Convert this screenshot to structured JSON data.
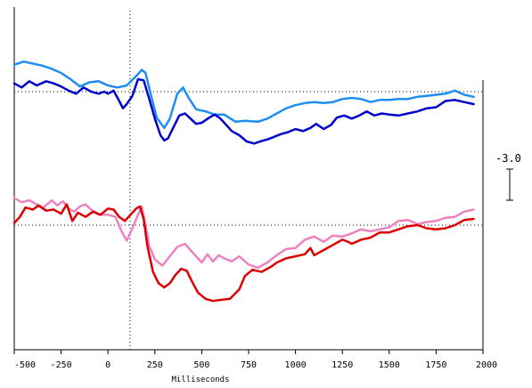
{
  "chart_data": {
    "type": "line",
    "title": "",
    "xlabel": "Milliseconds",
    "ylabel": "",
    "xlim": [
      -500,
      2000
    ],
    "x_ticks": [
      -500,
      -250,
      0,
      250,
      500,
      750,
      1000,
      1250,
      1500,
      1750,
      2000
    ],
    "x_tick_labels": [
      "-500",
      "-250",
      "0",
      "250",
      "500",
      "750",
      "1000",
      "1250",
      "1500",
      "1750",
      "2000"
    ],
    "scale_bar_label": "-3.0",
    "scale_bar_microvolts": 3.0,
    "grid": false,
    "legend": "none",
    "panels": [
      {
        "baseline": 0,
        "ylim": [
          -7.5,
          3.5
        ],
        "series": [
          {
            "color": "#1e8ef0",
            "points": [
              [
                -500,
                2.6
              ],
              [
                -450,
                2.9
              ],
              [
                -400,
                2.7
              ],
              [
                -350,
                2.5
              ],
              [
                -300,
                2.2
              ],
              [
                -250,
                1.8
              ],
              [
                -200,
                1.2
              ],
              [
                -150,
                0.5
              ],
              [
                -100,
                0.9
              ],
              [
                -50,
                1.0
              ],
              [
                0,
                0.6
              ],
              [
                50,
                0.4
              ],
              [
                100,
                0.6
              ],
              [
                150,
                1.5
              ],
              [
                180,
                2.1
              ],
              [
                200,
                1.8
              ],
              [
                230,
                -0.4
              ],
              [
                260,
                -2.5
              ],
              [
                300,
                -3.5
              ],
              [
                330,
                -2.6
              ],
              [
                370,
                -0.2
              ],
              [
                400,
                0.4
              ],
              [
                430,
                -0.6
              ],
              [
                470,
                -1.7
              ],
              [
                520,
                -1.9
              ],
              [
                570,
                -2.2
              ],
              [
                620,
                -2.2
              ],
              [
                680,
                -2.9
              ],
              [
                730,
                -2.8
              ],
              [
                800,
                -2.9
              ],
              [
                850,
                -2.6
              ],
              [
                900,
                -2.1
              ],
              [
                950,
                -1.6
              ],
              [
                1000,
                -1.3
              ],
              [
                1050,
                -1.1
              ],
              [
                1100,
                -1.0
              ],
              [
                1150,
                -1.1
              ],
              [
                1200,
                -1.0
              ],
              [
                1250,
                -0.7
              ],
              [
                1300,
                -0.6
              ],
              [
                1350,
                -0.7
              ],
              [
                1400,
                -1.0
              ],
              [
                1450,
                -0.8
              ],
              [
                1500,
                -0.8
              ],
              [
                1550,
                -0.7
              ],
              [
                1600,
                -0.7
              ],
              [
                1650,
                -0.5
              ],
              [
                1700,
                -0.4
              ],
              [
                1750,
                -0.3
              ],
              [
                1800,
                -0.2
              ],
              [
                1850,
                0.1
              ],
              [
                1900,
                -0.3
              ],
              [
                1950,
                -0.5
              ]
            ]
          },
          {
            "color": "#0000cc",
            "points": [
              [
                -500,
                0.8
              ],
              [
                -460,
                0.4
              ],
              [
                -420,
                1.0
              ],
              [
                -380,
                0.6
              ],
              [
                -330,
                1.0
              ],
              [
                -290,
                0.8
              ],
              [
                -250,
                0.5
              ],
              [
                -210,
                0.1
              ],
              [
                -170,
                -0.2
              ],
              [
                -130,
                0.4
              ],
              [
                -90,
                0.0
              ],
              [
                -50,
                -0.2
              ],
              [
                -20,
                0.0
              ],
              [
                0,
                -0.2
              ],
              [
                30,
                0.1
              ],
              [
                60,
                -0.9
              ],
              [
                80,
                -1.6
              ],
              [
                100,
                -1.2
              ],
              [
                130,
                -0.4
              ],
              [
                160,
                1.2
              ],
              [
                190,
                1.1
              ],
              [
                220,
                -0.7
              ],
              [
                250,
                -2.6
              ],
              [
                280,
                -4.2
              ],
              [
                300,
                -4.7
              ],
              [
                320,
                -4.5
              ],
              [
                350,
                -3.4
              ],
              [
                380,
                -2.3
              ],
              [
                410,
                -2.1
              ],
              [
                440,
                -2.6
              ],
              [
                470,
                -3.1
              ],
              [
                500,
                -3.0
              ],
              [
                540,
                -2.5
              ],
              [
                570,
                -2.2
              ],
              [
                600,
                -2.6
              ],
              [
                630,
                -3.2
              ],
              [
                660,
                -3.8
              ],
              [
                700,
                -4.2
              ],
              [
                740,
                -4.8
              ],
              [
                780,
                -5.0
              ],
              [
                810,
                -4.8
              ],
              [
                850,
                -4.6
              ],
              [
                880,
                -4.4
              ],
              [
                920,
                -4.1
              ],
              [
                960,
                -3.9
              ],
              [
                1000,
                -3.6
              ],
              [
                1040,
                -3.8
              ],
              [
                1080,
                -3.5
              ],
              [
                1110,
                -3.1
              ],
              [
                1150,
                -3.6
              ],
              [
                1190,
                -3.2
              ],
              [
                1220,
                -2.5
              ],
              [
                1260,
                -2.3
              ],
              [
                1300,
                -2.6
              ],
              [
                1340,
                -2.3
              ],
              [
                1380,
                -1.9
              ],
              [
                1420,
                -2.3
              ],
              [
                1460,
                -2.1
              ],
              [
                1500,
                -2.2
              ],
              [
                1550,
                -2.3
              ],
              [
                1600,
                -2.1
              ],
              [
                1650,
                -1.9
              ],
              [
                1700,
                -1.6
              ],
              [
                1750,
                -1.5
              ],
              [
                1800,
                -0.9
              ],
              [
                1850,
                -0.8
              ],
              [
                1900,
                -1.0
              ],
              [
                1950,
                -1.2
              ]
            ]
          }
        ]
      },
      {
        "baseline": 0,
        "ylim": [
          -7.5,
          3.5
        ],
        "series": [
          {
            "color": "#ee82c0",
            "points": [
              [
                -500,
                2.6
              ],
              [
                -460,
                2.2
              ],
              [
                -420,
                2.4
              ],
              [
                -380,
                2.0
              ],
              [
                -350,
                1.6
              ],
              [
                -300,
                2.4
              ],
              [
                -270,
                1.9
              ],
              [
                -240,
                2.3
              ],
              [
                -210,
                1.6
              ],
              [
                -180,
                1.3
              ],
              [
                -150,
                1.8
              ],
              [
                -120,
                2.0
              ],
              [
                -90,
                1.5
              ],
              [
                -50,
                1.0
              ],
              [
                0,
                1.0
              ],
              [
                40,
                0.8
              ],
              [
                70,
                -0.5
              ],
              [
                100,
                -1.5
              ],
              [
                130,
                -0.3
              ],
              [
                160,
                1.0
              ],
              [
                180,
                1.8
              ],
              [
                200,
                0.0
              ],
              [
                220,
                -2.0
              ],
              [
                250,
                -3.3
              ],
              [
                290,
                -3.9
              ],
              [
                330,
                -3.0
              ],
              [
                370,
                -2.1
              ],
              [
                410,
                -1.8
              ],
              [
                440,
                -2.4
              ],
              [
                470,
                -3.0
              ],
              [
                500,
                -3.6
              ],
              [
                530,
                -2.8
              ],
              [
                560,
                -3.5
              ],
              [
                590,
                -2.9
              ],
              [
                620,
                -3.2
              ],
              [
                660,
                -3.5
              ],
              [
                700,
                -3.0
              ],
              [
                750,
                -3.8
              ],
              [
                800,
                -4.1
              ],
              [
                850,
                -3.6
              ],
              [
                900,
                -2.9
              ],
              [
                950,
                -2.3
              ],
              [
                1000,
                -2.2
              ],
              [
                1050,
                -1.4
              ],
              [
                1100,
                -1.1
              ],
              [
                1150,
                -1.6
              ],
              [
                1200,
                -1.0
              ],
              [
                1250,
                -1.1
              ],
              [
                1300,
                -0.8
              ],
              [
                1350,
                -0.4
              ],
              [
                1400,
                -0.6
              ],
              [
                1450,
                -0.4
              ],
              [
                1500,
                -0.2
              ],
              [
                1550,
                0.4
              ],
              [
                1600,
                0.5
              ],
              [
                1650,
                0.1
              ],
              [
                1700,
                0.3
              ],
              [
                1750,
                0.4
              ],
              [
                1800,
                0.7
              ],
              [
                1850,
                0.8
              ],
              [
                1900,
                1.3
              ],
              [
                1950,
                1.5
              ]
            ]
          },
          {
            "color": "#dd0000",
            "points": [
              [
                -500,
                0.2
              ],
              [
                -470,
                0.8
              ],
              [
                -440,
                1.7
              ],
              [
                -400,
                1.5
              ],
              [
                -370,
                1.9
              ],
              [
                -330,
                1.4
              ],
              [
                -290,
                1.5
              ],
              [
                -250,
                1.1
              ],
              [
                -220,
                2.0
              ],
              [
                -190,
                0.4
              ],
              [
                -160,
                1.2
              ],
              [
                -120,
                0.8
              ],
              [
                -80,
                1.3
              ],
              [
                -40,
                1.0
              ],
              [
                0,
                1.6
              ],
              [
                30,
                1.5
              ],
              [
                60,
                0.8
              ],
              [
                90,
                0.4
              ],
              [
                120,
                1.0
              ],
              [
                150,
                1.6
              ],
              [
                170,
                1.8
              ],
              [
                190,
                0.6
              ],
              [
                210,
                -2.0
              ],
              [
                240,
                -4.5
              ],
              [
                270,
                -5.6
              ],
              [
                300,
                -6.0
              ],
              [
                330,
                -5.6
              ],
              [
                360,
                -4.8
              ],
              [
                390,
                -4.2
              ],
              [
                420,
                -4.4
              ],
              [
                450,
                -5.5
              ],
              [
                480,
                -6.5
              ],
              [
                520,
                -7.1
              ],
              [
                560,
                -7.3
              ],
              [
                600,
                -7.2
              ],
              [
                650,
                -7.1
              ],
              [
                700,
                -6.2
              ],
              [
                730,
                -4.9
              ],
              [
                770,
                -4.3
              ],
              [
                820,
                -4.5
              ],
              [
                870,
                -4.0
              ],
              [
                900,
                -3.6
              ],
              [
                950,
                -3.2
              ],
              [
                1000,
                -3.0
              ],
              [
                1050,
                -2.8
              ],
              [
                1080,
                -2.2
              ],
              [
                1100,
                -2.9
              ],
              [
                1150,
                -2.4
              ],
              [
                1200,
                -1.9
              ],
              [
                1250,
                -1.4
              ],
              [
                1280,
                -1.6
              ],
              [
                1300,
                -1.8
              ],
              [
                1350,
                -1.4
              ],
              [
                1400,
                -1.2
              ],
              [
                1450,
                -0.7
              ],
              [
                1500,
                -0.7
              ],
              [
                1550,
                -0.4
              ],
              [
                1600,
                -0.1
              ],
              [
                1650,
                0.0
              ],
              [
                1700,
                -0.3
              ],
              [
                1750,
                -0.4
              ],
              [
                1800,
                -0.3
              ],
              [
                1850,
                0.0
              ],
              [
                1900,
                0.5
              ],
              [
                1950,
                0.6
              ]
            ]
          }
        ]
      }
    ]
  }
}
